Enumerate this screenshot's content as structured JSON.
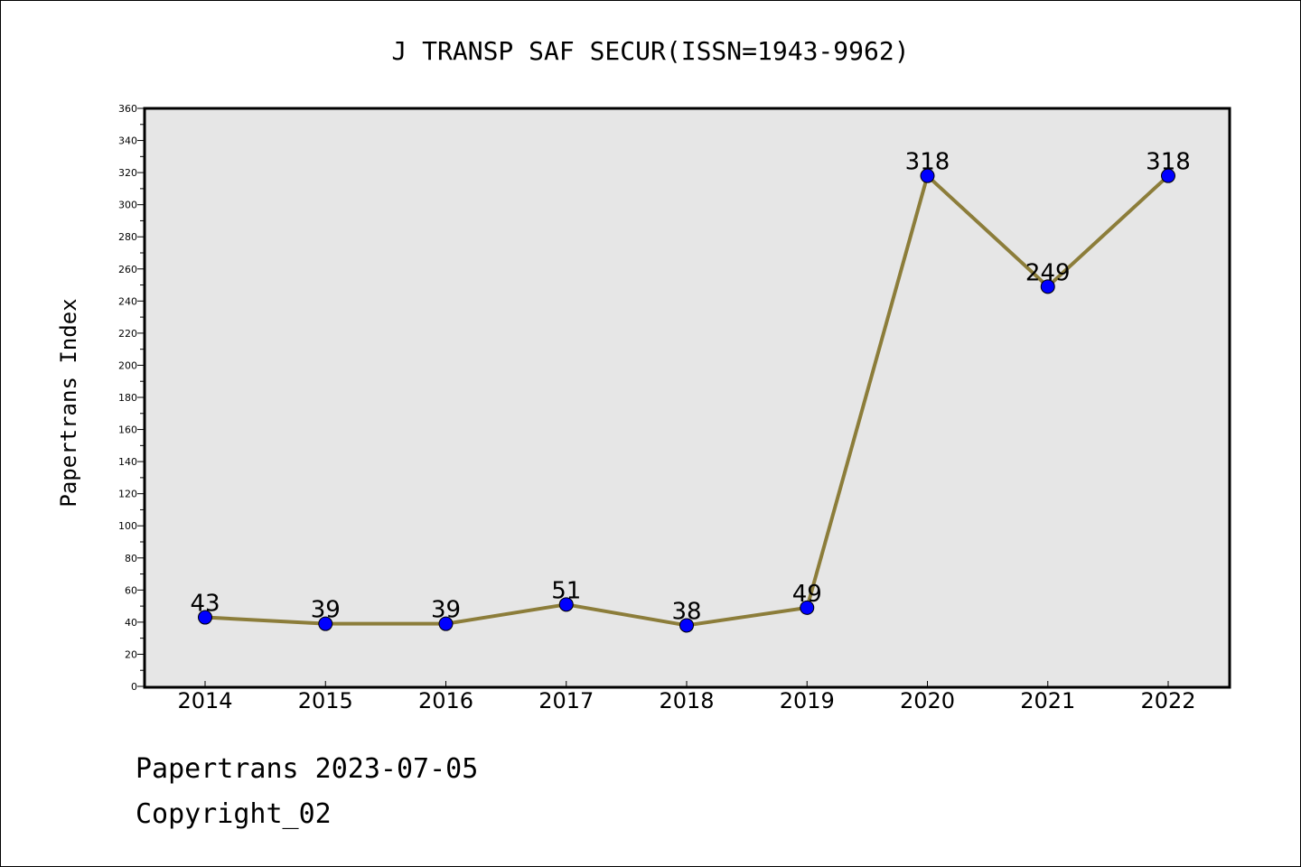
{
  "chart_data": {
    "type": "line",
    "title": "J TRANSP SAF SECUR(ISSN=1943-9962)",
    "xlabel": "",
    "ylabel": "Papertrans Index",
    "categories": [
      "2014",
      "2015",
      "2016",
      "2017",
      "2018",
      "2019",
      "2020",
      "2021",
      "2022"
    ],
    "series": [
      {
        "values": [
          43,
          39,
          39,
          51,
          38,
          49,
          318,
          249,
          318
        ]
      }
    ],
    "ylim": [
      0,
      360
    ],
    "ytick_step": 20,
    "grid": false,
    "plot_background": "#e6e6e6",
    "line_color": "#8c7d3a",
    "marker_color": "#0000ff"
  },
  "footer": {
    "line1": "Papertrans 2023-07-05",
    "line2": "Copyright_02"
  }
}
